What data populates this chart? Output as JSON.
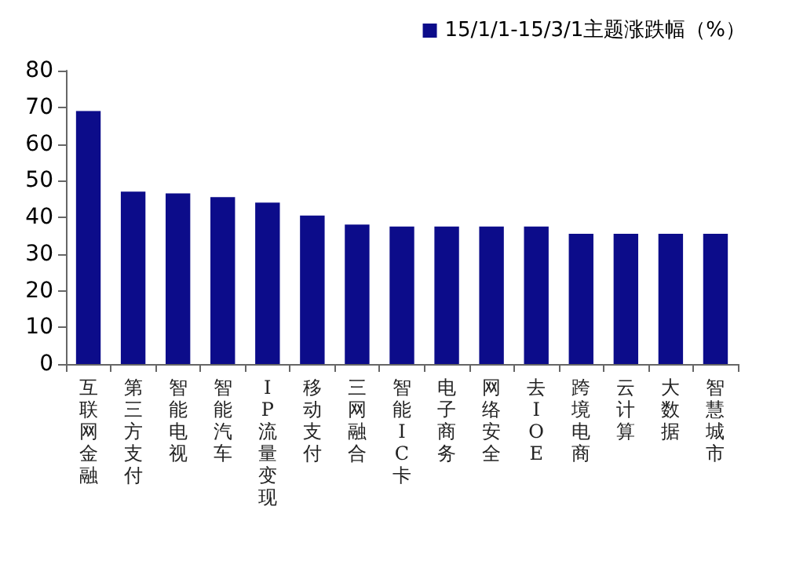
{
  "chart_data": {
    "type": "bar",
    "categories": [
      "互联网金融",
      "第三方支付",
      "智能电视",
      "智能汽车",
      "IP流量变现",
      "移动支付",
      "三网融合",
      "智能IC卡",
      "电子商务",
      "网络安全",
      "去IOE",
      "跨境电商",
      "云计算",
      "大数据",
      "智慧城市"
    ],
    "series": [
      {
        "name": "15/1/1-15/3/1主题涨跌幅（%）",
        "color": "#0c0c8a",
        "values": [
          69,
          47,
          46.5,
          45.5,
          44,
          40.5,
          38,
          37.5,
          37.5,
          37.5,
          37.5,
          35.5,
          35.5,
          35.5,
          35.5
        ]
      }
    ],
    "ylim": [
      0,
      80
    ],
    "yticks": [
      0,
      10,
      20,
      30,
      40,
      50,
      60,
      70,
      80
    ],
    "grid": false,
    "legend": "top right"
  }
}
